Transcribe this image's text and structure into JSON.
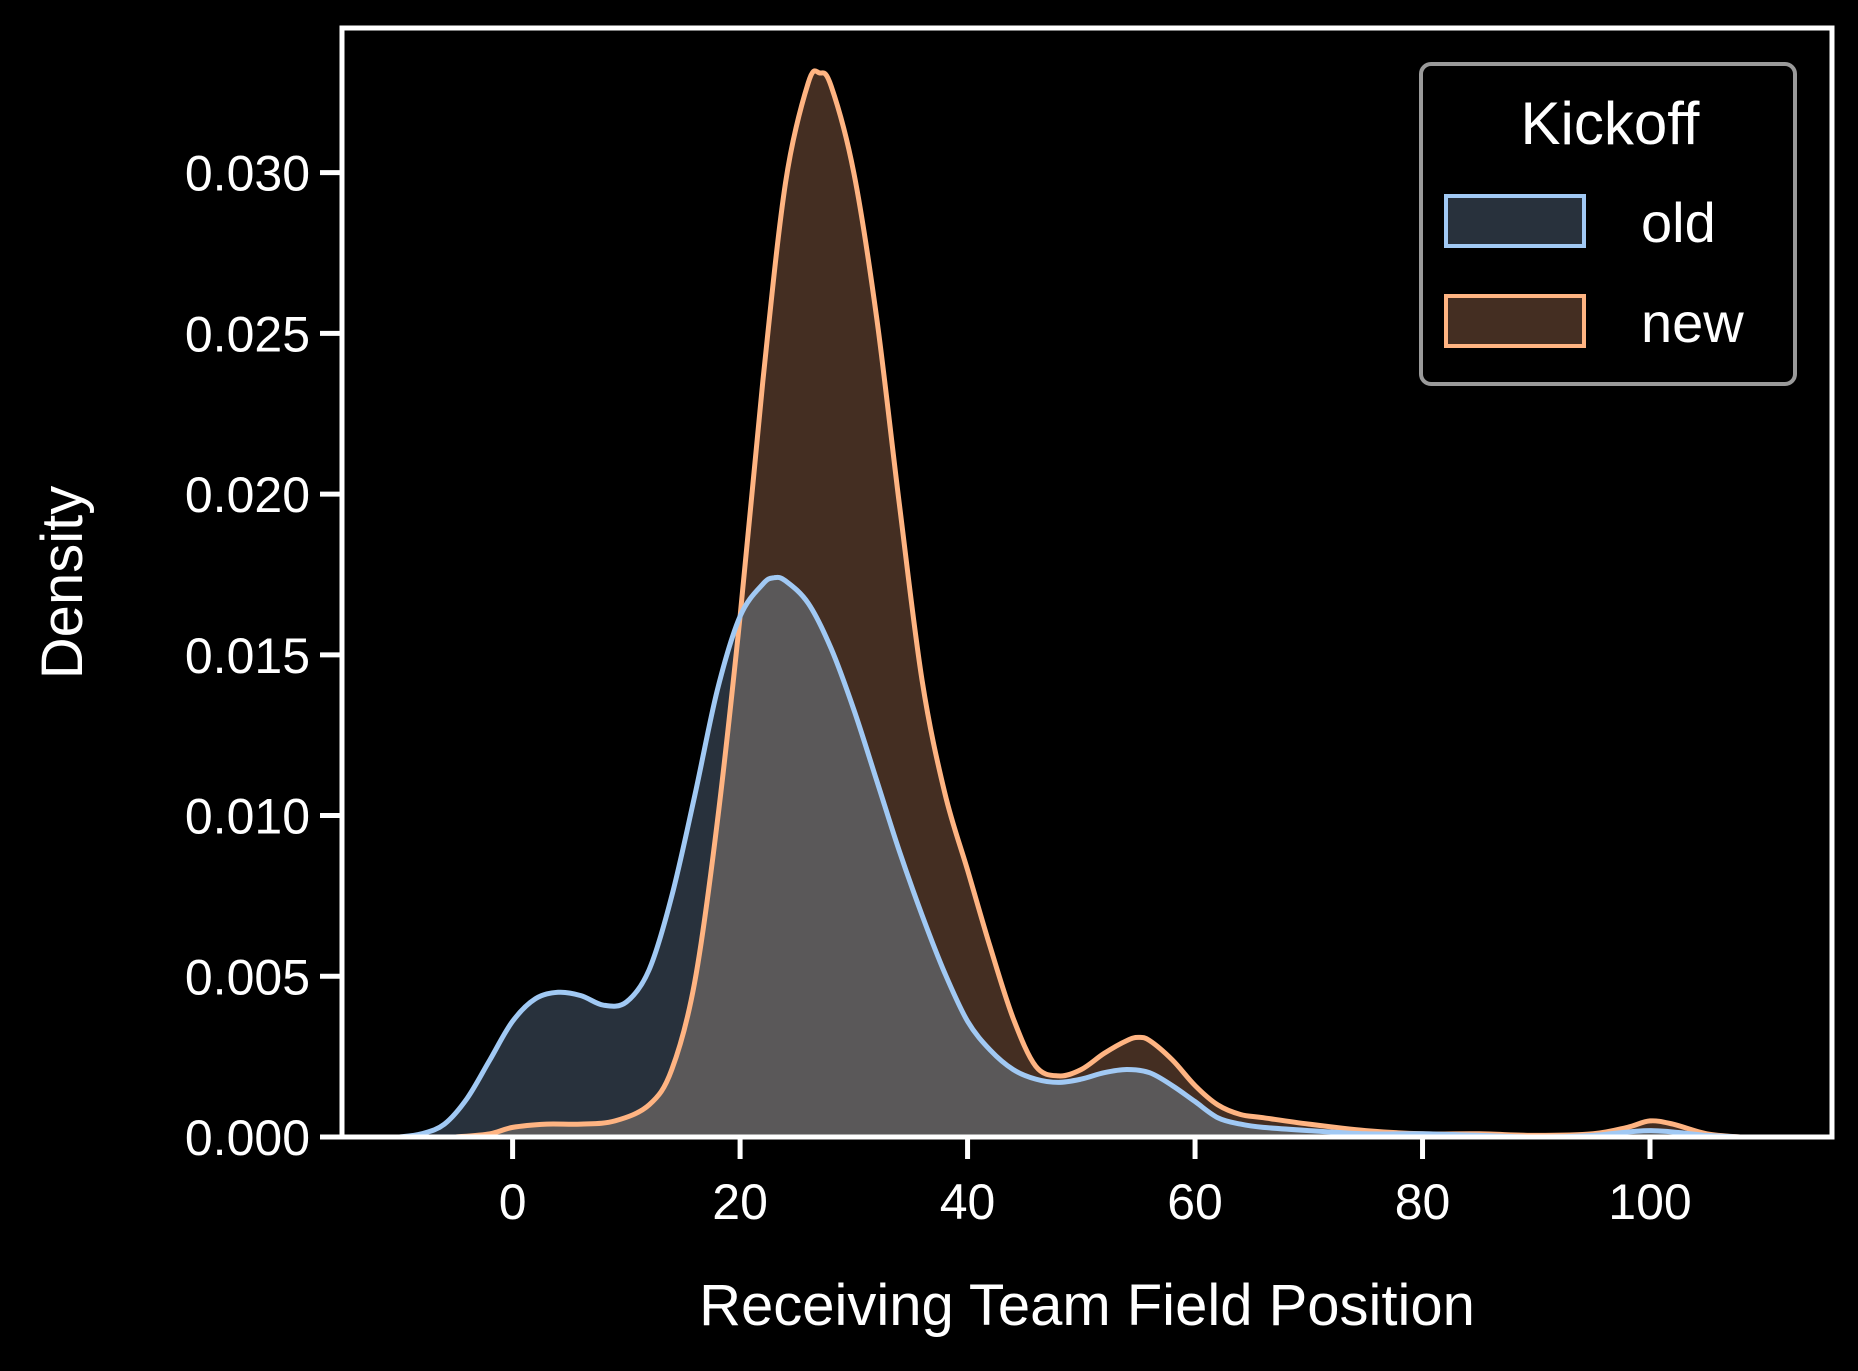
{
  "chart_data": {
    "type": "area",
    "title": "",
    "xlabel": "Receiving Team Field Position",
    "ylabel": "Density",
    "xlim": [
      -15,
      116
    ],
    "ylim": [
      0,
      0.0345
    ],
    "xticks": [
      0,
      20,
      40,
      60,
      80,
      100
    ],
    "xtick_labels": [
      "0",
      "20",
      "40",
      "60",
      "80",
      "100"
    ],
    "yticks": [
      0,
      0.005,
      0.01,
      0.015,
      0.02,
      0.025,
      0.03
    ],
    "ytick_labels": [
      "0.000",
      "0.005",
      "0.010",
      "0.015",
      "0.020",
      "0.025",
      "0.030"
    ],
    "grid": false,
    "legend": {
      "title": "Kickoff",
      "placement": "top-right"
    },
    "background": "#000000",
    "overlap_color": "#5a5859",
    "series": [
      {
        "name": "old",
        "line_color": "#a1c9f4",
        "fill_color": "#28313c",
        "x": [
          -10,
          -8,
          -6,
          -4,
          -2,
          0,
          2,
          4,
          6,
          8,
          10,
          12,
          14,
          16,
          18,
          20,
          22,
          23,
          24,
          26,
          28,
          30,
          32,
          34,
          36,
          38,
          40,
          42,
          44,
          46,
          48,
          50,
          52,
          54,
          56,
          58,
          60,
          62,
          64,
          66,
          70,
          75,
          80,
          85,
          90,
          95,
          100,
          105,
          108
        ],
        "y": [
          0.0,
          0.0001,
          0.0004,
          0.0012,
          0.0024,
          0.0036,
          0.0043,
          0.0045,
          0.0044,
          0.0041,
          0.0042,
          0.0052,
          0.0075,
          0.0106,
          0.0139,
          0.0162,
          0.0172,
          0.0174,
          0.0173,
          0.0166,
          0.0152,
          0.0133,
          0.0111,
          0.0089,
          0.0069,
          0.0051,
          0.0036,
          0.0027,
          0.0021,
          0.0018,
          0.0017,
          0.0018,
          0.002,
          0.0021,
          0.002,
          0.0016,
          0.0011,
          0.0006,
          0.0004,
          0.0003,
          0.0002,
          0.0001,
          0.0001,
          5e-05,
          0.0,
          5e-05,
          0.0002,
          5e-05,
          0.0
        ]
      },
      {
        "name": "new",
        "line_color": "#ffb482",
        "fill_color": "#442e22",
        "x": [
          -5,
          -2,
          0,
          3,
          6,
          9,
          12,
          14,
          16,
          18,
          20,
          22,
          24,
          26,
          27,
          28,
          30,
          32,
          34,
          36,
          38,
          40,
          42,
          44,
          46,
          48,
          50,
          52,
          54,
          55,
          56,
          58,
          60,
          62,
          64,
          66,
          70,
          75,
          80,
          85,
          90,
          95,
          98,
          100,
          102,
          105,
          108
        ],
        "y": [
          0.0,
          0.0001,
          0.0003,
          0.0004,
          0.0004,
          0.0005,
          0.001,
          0.0021,
          0.0048,
          0.0098,
          0.0162,
          0.0235,
          0.0297,
          0.0328,
          0.0331,
          0.0327,
          0.03,
          0.0255,
          0.0197,
          0.0142,
          0.0107,
          0.0083,
          0.0059,
          0.0037,
          0.0022,
          0.0019,
          0.0021,
          0.0026,
          0.003,
          0.0031,
          0.003,
          0.0024,
          0.0016,
          0.001,
          0.0007,
          0.0006,
          0.0004,
          0.0002,
          0.0001,
          0.0001,
          5e-05,
          0.0001,
          0.0003,
          0.0005,
          0.0004,
          0.0001,
          0.0
        ]
      }
    ]
  }
}
